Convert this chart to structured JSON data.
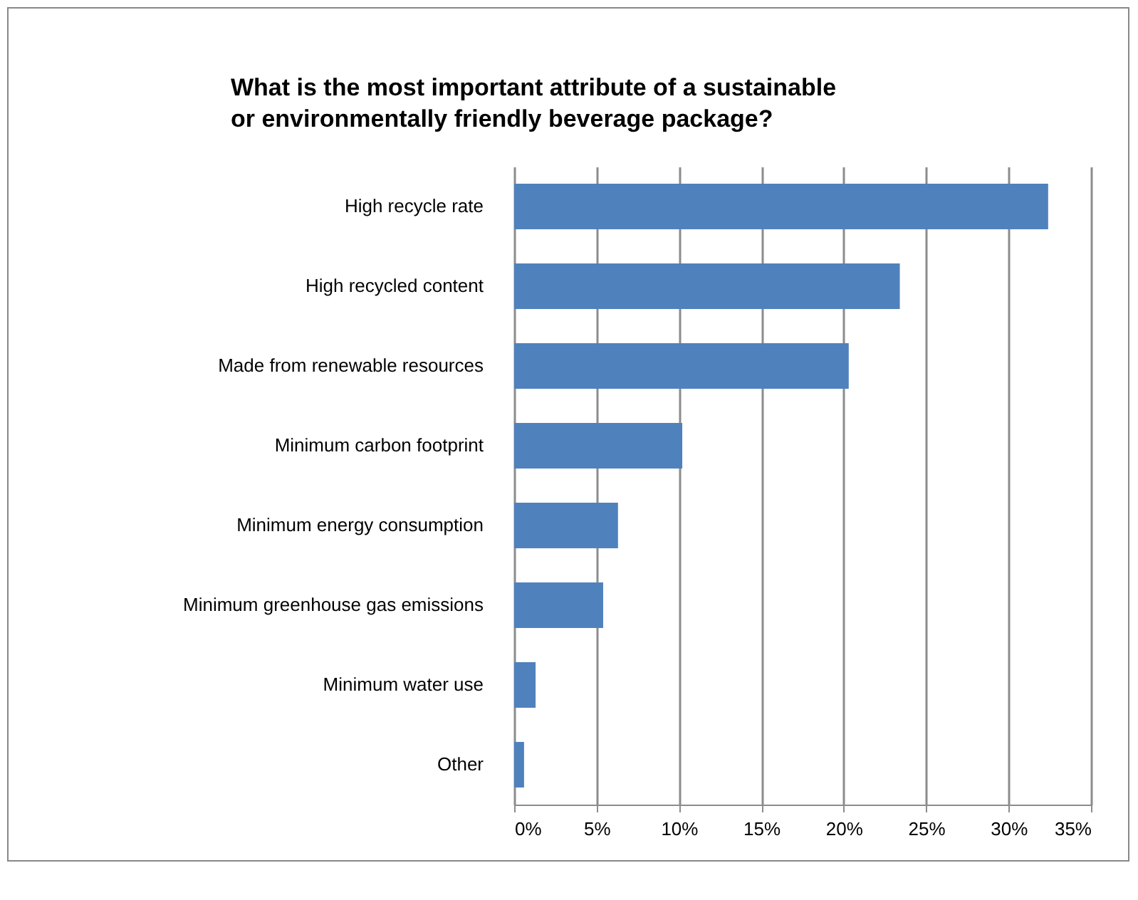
{
  "chart_data": {
    "type": "bar",
    "orientation": "horizontal",
    "title": "What is the most important attribute of a sustainable or environmentally friendly beverage package?",
    "categories": [
      "High recycle rate",
      "High recycled content",
      "Made from renewable resources",
      "Minimum carbon footprint",
      "Minimum energy consumption",
      "Minimum greenhouse gas emissions",
      "Minimum water use",
      "Other"
    ],
    "values": [
      32.4,
      23.4,
      20.3,
      10.2,
      6.3,
      5.4,
      1.3,
      0.6
    ],
    "color": "#4f81bd",
    "xlim": [
      0,
      35
    ],
    "xticks": [
      {
        "value": 0,
        "label": "0%"
      },
      {
        "value": 5,
        "label": "5%"
      },
      {
        "value": 10,
        "label": "10%"
      },
      {
        "value": 15,
        "label": "15%"
      },
      {
        "value": 20,
        "label": "20%"
      },
      {
        "value": 25,
        "label": "25%"
      },
      {
        "value": 30,
        "label": "30%"
      },
      {
        "value": 35,
        "label": "35%"
      }
    ],
    "grid": "x"
  }
}
